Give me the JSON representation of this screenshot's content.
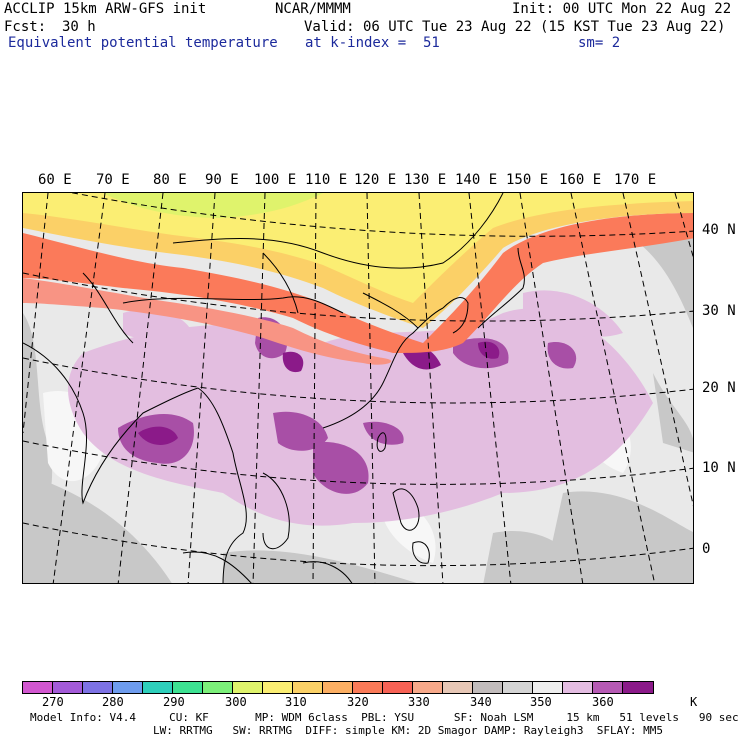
{
  "header": {
    "model": "ACCLIP 15km ARW-GFS init",
    "org": "NCAR/MMMM",
    "init": "Init: 00 UTC Mon 22 Aug 22",
    "fcst_label": "Fcst:",
    "fcst_value": "30 h",
    "valid": "Valid: 06 UTC Tue 23 Aug 22 (15 KST Tue 23 Aug 22)",
    "field": "Equivalent potential temperature",
    "level": "at k-index =  51",
    "smoothing": "sm= 2"
  },
  "map": {
    "region": "East and South Asia / Western Pacific",
    "lon_labels": [
      "60 E",
      "70 E",
      "80 E",
      "90 E",
      "100 E",
      "110 E",
      "120 E",
      "130 E",
      "140 E",
      "150 E",
      "160 E",
      "170 E"
    ],
    "lat_labels": [
      "40 N",
      "30 N",
      "20 N",
      "10 N",
      "0"
    ]
  },
  "colorbar": {
    "colors": [
      "#d257d0",
      "#a35bd8",
      "#7d72e4",
      "#6e9cee",
      "#2ecfbb",
      "#3de292",
      "#7cf07a",
      "#dff36c",
      "#fbee73",
      "#fbd167",
      "#fcaf63",
      "#fa7a58",
      "#f76255",
      "#f7a98a",
      "#e7c7b6",
      "#c2bcbc",
      "#d4d4d4",
      "#eeeeee",
      "#e4bde2",
      "#b65ab4",
      "#8b1a89"
    ],
    "labels": [
      "270",
      "280",
      "290",
      "300",
      "310",
      "320",
      "330",
      "340",
      "350",
      "360"
    ],
    "unit": "K"
  },
  "footer": {
    "line1": "Model Info: V4.4     CU: KF       MP: WDM 6class  PBL: YSU      SF: Noah LSM     15 km   51 levels   90 sec",
    "line2": "LW: RRTMG   SW: RRTMG  DIFF: simple KM: 2D Smagor DAMP: Rayleigh3  SFLAY: MM5"
  }
}
